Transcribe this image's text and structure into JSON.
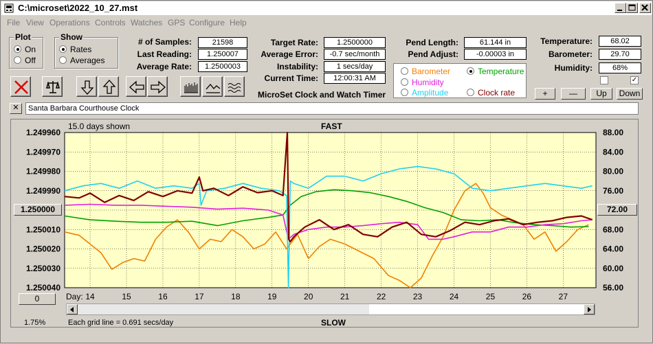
{
  "window": {
    "title": "C:\\microset\\2022_10_27.mst"
  },
  "menu": [
    "File",
    "View",
    "Operations",
    "Controls",
    "Watches",
    "GPS",
    "Configure",
    "Help"
  ],
  "plot_group": {
    "label": "Plot",
    "options": [
      "On",
      "Off"
    ],
    "selected": "On"
  },
  "show_group": {
    "label": "Show",
    "options": [
      "Rates",
      "Averages"
    ],
    "selected": "Rates"
  },
  "stats": {
    "samples_label": "# of Samples:",
    "samples": "21598",
    "last_reading_label": "Last Reading:",
    "last_reading": "1.250007",
    "average_rate_label": "Average Rate:",
    "average_rate": "1.2500003",
    "target_rate_label": "Target Rate:",
    "target_rate": "1.2500000",
    "average_error_label": "Average Error:",
    "average_error": "-0.7 sec/month",
    "instability_label": "Instability:",
    "instability": "1 secs/day",
    "current_time_label": "Current Time:",
    "current_time": "12:00:31 AM",
    "pend_length_label": "Pend Length:",
    "pend_length": "61.144 in",
    "pend_adjust_label": "Pend Adjust:",
    "pend_adjust": "-0.00003 in",
    "temperature_label": "Temperature:",
    "temperature": "68.02",
    "barometer_label": "Barometer:",
    "barometer": "29.70",
    "humidity_label": "Humidity:",
    "humidity": "68%"
  },
  "app_name": "MicroSet Clock and Watch Timer",
  "sensor_options": [
    {
      "label": "Barometer",
      "color": "#f08000",
      "selected": false
    },
    {
      "label": "Temperature",
      "color": "#00a000",
      "selected": true
    },
    {
      "label": "Humidity",
      "color": "#e020e0",
      "selected": false
    },
    {
      "label": "Amplitude",
      "color": "#20d0f0",
      "selected": false
    },
    {
      "label": "Clock rate",
      "color": "#800000",
      "selected": false
    }
  ],
  "right_buttons": {
    "plus": "+",
    "minus": "—",
    "up": "Up",
    "down": "Down"
  },
  "checkboxes": {
    "left": false,
    "right": true,
    "right_mark": "✓"
  },
  "close_x": "✕",
  "clock_name": "Santa Barbara Courthouse Clock",
  "chart_data": {
    "type": "line",
    "top_label": "FAST",
    "bottom_label": "SLOW",
    "days_shown": "15.0 days shown",
    "grid_note": "Each grid line = 0.691 secs/day",
    "zoom": "1.75%",
    "left_button_value": "1.250000",
    "right_button_value": "72.00",
    "bottom_button_value": "0",
    "day_label": "Day:",
    "x_ticks": [
      "14",
      "15",
      "16",
      "17",
      "18",
      "19",
      "20",
      "21",
      "22",
      "23",
      "24",
      "25",
      "26",
      "27"
    ],
    "x_range": [
      13.3,
      27.9
    ],
    "y_left_ticks": [
      "1.249960",
      "1.249970",
      "1.249980",
      "1.249990",
      "1.250000",
      "1.250010",
      "1.250020",
      "1.250030",
      "1.250040"
    ],
    "y_left_range": [
      1.24996,
      1.25004
    ],
    "y_right_ticks": [
      "88.00",
      "84.00",
      "80.00",
      "76.00",
      "72.00",
      "68.00",
      "64.00",
      "60.00",
      "56.00"
    ],
    "y_right_range": [
      56,
      88
    ],
    "series": [
      {
        "name": "Barometer",
        "color": "#f08000",
        "x": [
          13.3,
          13.7,
          14.0,
          14.3,
          14.6,
          14.9,
          15.2,
          15.5,
          15.8,
          16.1,
          16.4,
          16.7,
          17.0,
          17.3,
          17.6,
          17.9,
          18.2,
          18.5,
          18.8,
          19.1,
          19.4,
          19.7,
          20.0,
          20.3,
          20.6,
          21.0,
          21.4,
          21.8,
          22.2,
          22.5,
          22.8,
          23.1,
          23.4,
          23.7,
          24.0,
          24.3,
          24.6,
          24.8,
          25.0,
          25.3,
          25.6,
          25.9,
          26.2,
          26.5,
          26.8,
          27.1,
          27.4,
          27.7
        ],
        "y": [
          67.5,
          66.8,
          65.0,
          63.2,
          59.8,
          61.2,
          62.0,
          61.5,
          66.0,
          68.5,
          70.0,
          67.5,
          64.0,
          66.0,
          65.5,
          68.0,
          66.5,
          64.0,
          65.0,
          67.5,
          64.0,
          67.0,
          62.0,
          64.5,
          66.0,
          65.0,
          63.5,
          62.0,
          58.5,
          57.5,
          56.0,
          58.0,
          62.5,
          66.5,
          72.0,
          76.0,
          77.5,
          75.5,
          72.5,
          71.0,
          70.0,
          69.0,
          66.0,
          67.5,
          63.5,
          65.5,
          68.0,
          69.0
        ]
      },
      {
        "name": "Temperature",
        "color": "#00a000",
        "x": [
          13.3,
          14.0,
          14.7,
          15.4,
          16.1,
          16.8,
          17.5,
          18.2,
          18.9,
          19.3,
          19.5,
          19.8,
          20.2,
          20.7,
          21.2,
          21.7,
          22.2,
          22.7,
          23.2,
          23.7,
          24.2,
          24.7,
          25.2,
          25.7,
          26.2,
          26.7,
          27.2,
          27.7
        ],
        "y": [
          70.8,
          70.0,
          69.7,
          69.5,
          69.5,
          69.7,
          68.8,
          69.8,
          70.5,
          71.0,
          73.0,
          74.8,
          75.8,
          76.2,
          76.0,
          75.6,
          74.8,
          73.8,
          72.5,
          71.5,
          70.0,
          69.8,
          70.0,
          69.4,
          69.0,
          68.8,
          68.5,
          68.6
        ]
      },
      {
        "name": "Humidity",
        "color": "#e020e0",
        "x": [
          13.3,
          14.0,
          14.7,
          15.4,
          16.1,
          16.8,
          17.5,
          18.2,
          18.9,
          19.3,
          19.45,
          19.6,
          20.0,
          20.5,
          21.0,
          21.5,
          22.0,
          22.5,
          23.0,
          23.3,
          23.7,
          24.0,
          24.5,
          25.0,
          25.5,
          26.0,
          26.5,
          27.0,
          27.5,
          27.8
        ],
        "y": [
          73.0,
          73.2,
          73.0,
          73.0,
          72.8,
          72.6,
          72.2,
          72.4,
          72.0,
          71.0,
          66.0,
          67.0,
          68.0,
          68.5,
          68.5,
          68.8,
          69.2,
          69.5,
          69.0,
          66.0,
          66.0,
          66.5,
          67.5,
          67.5,
          68.5,
          68.5,
          69.0,
          69.2,
          69.8,
          70.0
        ]
      },
      {
        "name": "Amplitude",
        "color": "#20d0f0",
        "x": [
          13.3,
          13.8,
          14.3,
          14.8,
          15.3,
          15.8,
          16.3,
          16.8,
          17.0,
          17.05,
          17.2,
          17.7,
          18.2,
          18.7,
          19.2,
          19.4,
          19.45,
          19.5,
          19.6,
          20.0,
          20.5,
          21.0,
          21.5,
          22.0,
          22.5,
          23.0,
          23.5,
          24.0,
          24.5,
          25.0,
          25.5,
          26.0,
          26.5,
          27.0,
          27.5,
          27.8
        ],
        "y": [
          76.0,
          77.0,
          77.5,
          76.5,
          78.0,
          76.5,
          77.0,
          76.5,
          77.5,
          73.0,
          76.0,
          76.5,
          77.5,
          76.5,
          76.0,
          75.0,
          56.0,
          78.0,
          77.5,
          76.5,
          79.0,
          79.0,
          78.0,
          79.5,
          80.5,
          81.0,
          80.5,
          79.5,
          76.5,
          76.0,
          76.5,
          77.0,
          77.5,
          77.0,
          76.5,
          77.0
        ]
      },
      {
        "name": "Clock rate",
        "color": "#800000",
        "x": [
          13.3,
          13.7,
          14.0,
          14.4,
          14.8,
          15.2,
          15.6,
          16.0,
          16.4,
          16.8,
          17.0,
          17.1,
          17.4,
          17.8,
          18.2,
          18.6,
          19.0,
          19.3,
          19.42,
          19.46,
          19.5,
          19.6,
          19.9,
          20.3,
          20.7,
          21.1,
          21.5,
          21.9,
          22.3,
          22.7,
          23.1,
          23.5,
          23.9,
          24.3,
          24.7,
          25.1,
          25.5,
          25.9,
          26.3,
          26.7,
          27.1,
          27.5,
          27.8
        ],
        "y": [
          74.8,
          74.5,
          75.5,
          73.6,
          75.0,
          74.0,
          75.8,
          74.8,
          76.0,
          75.5,
          78.8,
          76.0,
          76.5,
          75.0,
          76.8,
          75.6,
          76.0,
          75.0,
          88.0,
          66.0,
          65.5,
          66.5,
          68.5,
          70.0,
          68.0,
          69.0,
          67.0,
          66.5,
          68.5,
          69.5,
          67.0,
          66.5,
          67.8,
          69.5,
          69.0,
          69.8,
          70.2,
          69.0,
          69.5,
          69.8,
          70.5,
          70.8,
          70.0
        ]
      }
    ]
  }
}
